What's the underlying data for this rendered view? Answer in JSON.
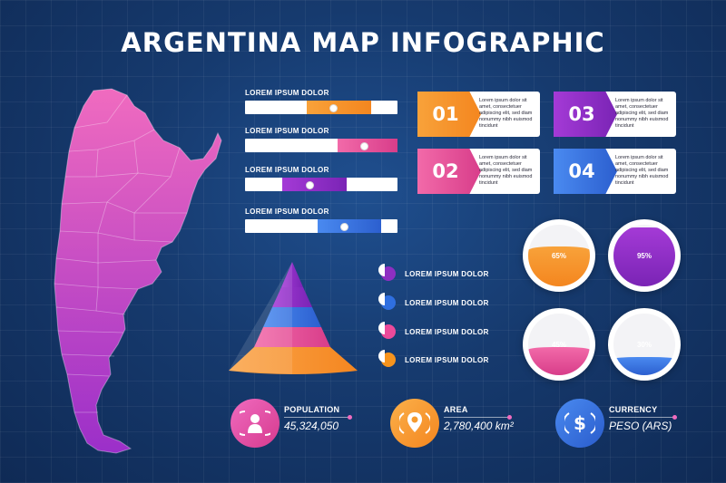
{
  "title": "ARGENTINA MAP INFOGRAPHIC",
  "colors": {
    "orange": "#f7941d",
    "pink": "#ec4a9a",
    "purple": "#8e2fc2",
    "blue": "#2f6fe0"
  },
  "bars": [
    {
      "label": "LOREM IPSUM DOLOR",
      "value": 0.58,
      "color": "orange"
    },
    {
      "label": "LOREM IPSUM DOLOR",
      "value": 0.78,
      "color": "pink"
    },
    {
      "label": "LOREM IPSUM DOLOR",
      "value": 0.42,
      "color": "purple"
    },
    {
      "label": "LOREM IPSUM DOLOR",
      "value": 0.65,
      "color": "blue"
    }
  ],
  "cards": [
    {
      "number": "01",
      "text": "Lorem ipsum dolor sit amet, consectetuer adipiscing elit, sed diam nonummy nibh euismod tincidunt",
      "color": "orange"
    },
    {
      "number": "02",
      "text": "Lorem ipsum dolor sit amet, consectetuer adipiscing elit, sed diam nonummy nibh euismod tincidunt",
      "color": "pink"
    },
    {
      "number": "03",
      "text": "Lorem ipsum dolor sit amet, consectetuer adipiscing elit, sed diam nonummy nibh euismod tincidunt",
      "color": "purple"
    },
    {
      "number": "04",
      "text": "Lorem ipsum dolor sit amet, consectetuer adipiscing elit, sed diam nonummy nibh euismod tincidunt",
      "color": "blue"
    }
  ],
  "pyramid_legend": [
    {
      "label": "LOREM IPSUM DOLOR",
      "color": "purple"
    },
    {
      "label": "LOREM IPSUM DOLOR",
      "color": "blue"
    },
    {
      "label": "LOREM IPSUM DOLOR",
      "color": "pink"
    },
    {
      "label": "LOREM IPSUM DOLOR",
      "color": "orange"
    }
  ],
  "gauges": [
    {
      "label": "65%",
      "value": 0.65,
      "color": "orange"
    },
    {
      "label": "95%",
      "value": 0.95,
      "color": "purple"
    },
    {
      "label": "45%",
      "value": 0.45,
      "color": "pink"
    },
    {
      "label": "30%",
      "value": 0.3,
      "color": "blue"
    }
  ],
  "stats": {
    "population": {
      "title": "POPULATION",
      "value": "45,324,050",
      "icon": "person-icon",
      "color": "pink"
    },
    "area": {
      "title": "AREA",
      "value": "2,780,400 km²",
      "icon": "location-pin-icon",
      "color": "orange"
    },
    "currency": {
      "title": "CURRENCY",
      "value": "PESO (ARS)",
      "icon": "dollar-icon",
      "color": "blue"
    }
  }
}
